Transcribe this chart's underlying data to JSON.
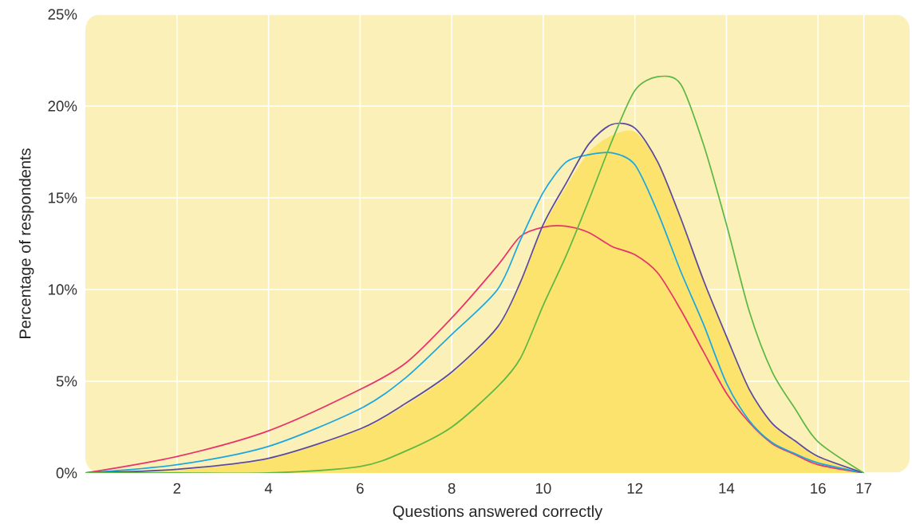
{
  "chart_data": {
    "type": "line",
    "xlabel": "Questions answered correctly",
    "ylabel": "Percentage of respondents",
    "x": [
      0,
      2,
      4,
      6,
      7,
      8,
      9,
      9.5,
      10,
      10.5,
      11,
      11.5,
      12,
      12.5,
      13,
      13.5,
      14,
      14.5,
      15,
      15.5,
      16,
      17
    ],
    "series": [
      {
        "type": "area",
        "color": "#fbe36e",
        "values": [
          0,
          0.15,
          0.75,
          2.35,
          3.7,
          5.4,
          7.85,
          10.3,
          13.4,
          15.6,
          17.5,
          18.4,
          18.6,
          16.9,
          13.85,
          10.45,
          7.4,
          4.5,
          2.65,
          1.7,
          0.85,
          0
        ]
      },
      {
        "color": "#e8336d",
        "values": [
          0,
          0.9,
          2.3,
          4.55,
          6.0,
          8.45,
          11.3,
          12.9,
          13.4,
          13.45,
          13.1,
          12.35,
          11.9,
          10.9,
          8.9,
          6.6,
          4.35,
          2.75,
          1.6,
          1.0,
          0.45,
          0
        ]
      },
      {
        "color": "#1ba8e0",
        "values": [
          0,
          0.45,
          1.45,
          3.5,
          5.2,
          7.55,
          10.0,
          12.7,
          15.3,
          16.95,
          17.35,
          17.45,
          16.8,
          14.2,
          11.0,
          8.1,
          4.9,
          2.85,
          1.65,
          1.05,
          0.55,
          0
        ]
      },
      {
        "color": "#5a4a9c",
        "values": [
          0,
          0.2,
          0.8,
          2.4,
          3.8,
          5.5,
          7.95,
          10.4,
          13.55,
          15.8,
          17.95,
          19.0,
          18.8,
          16.95,
          13.9,
          10.5,
          7.45,
          4.55,
          2.7,
          1.75,
          0.9,
          0
        ]
      },
      {
        "color": "#5db845",
        "values": [
          0,
          0,
          0,
          0.35,
          1.2,
          2.5,
          4.7,
          6.25,
          9.15,
          11.85,
          14.9,
          18.1,
          20.85,
          21.6,
          21.2,
          17.9,
          13.55,
          8.8,
          5.5,
          3.5,
          1.7,
          0
        ]
      }
    ],
    "xlim": [
      0,
      18
    ],
    "ylim": [
      0,
      25
    ],
    "xticks": [
      2,
      4,
      6,
      8,
      10,
      12,
      14,
      16,
      17
    ],
    "yticks": [
      {
        "value": 0,
        "label": "0%"
      },
      {
        "value": 5,
        "label": "5%"
      },
      {
        "value": 10,
        "label": "10%"
      },
      {
        "value": 15,
        "label": "15%"
      },
      {
        "value": 20,
        "label": "20%"
      },
      {
        "value": 25,
        "label": "25%"
      }
    ],
    "grid": true,
    "marker": "none",
    "line_style": "solid"
  }
}
